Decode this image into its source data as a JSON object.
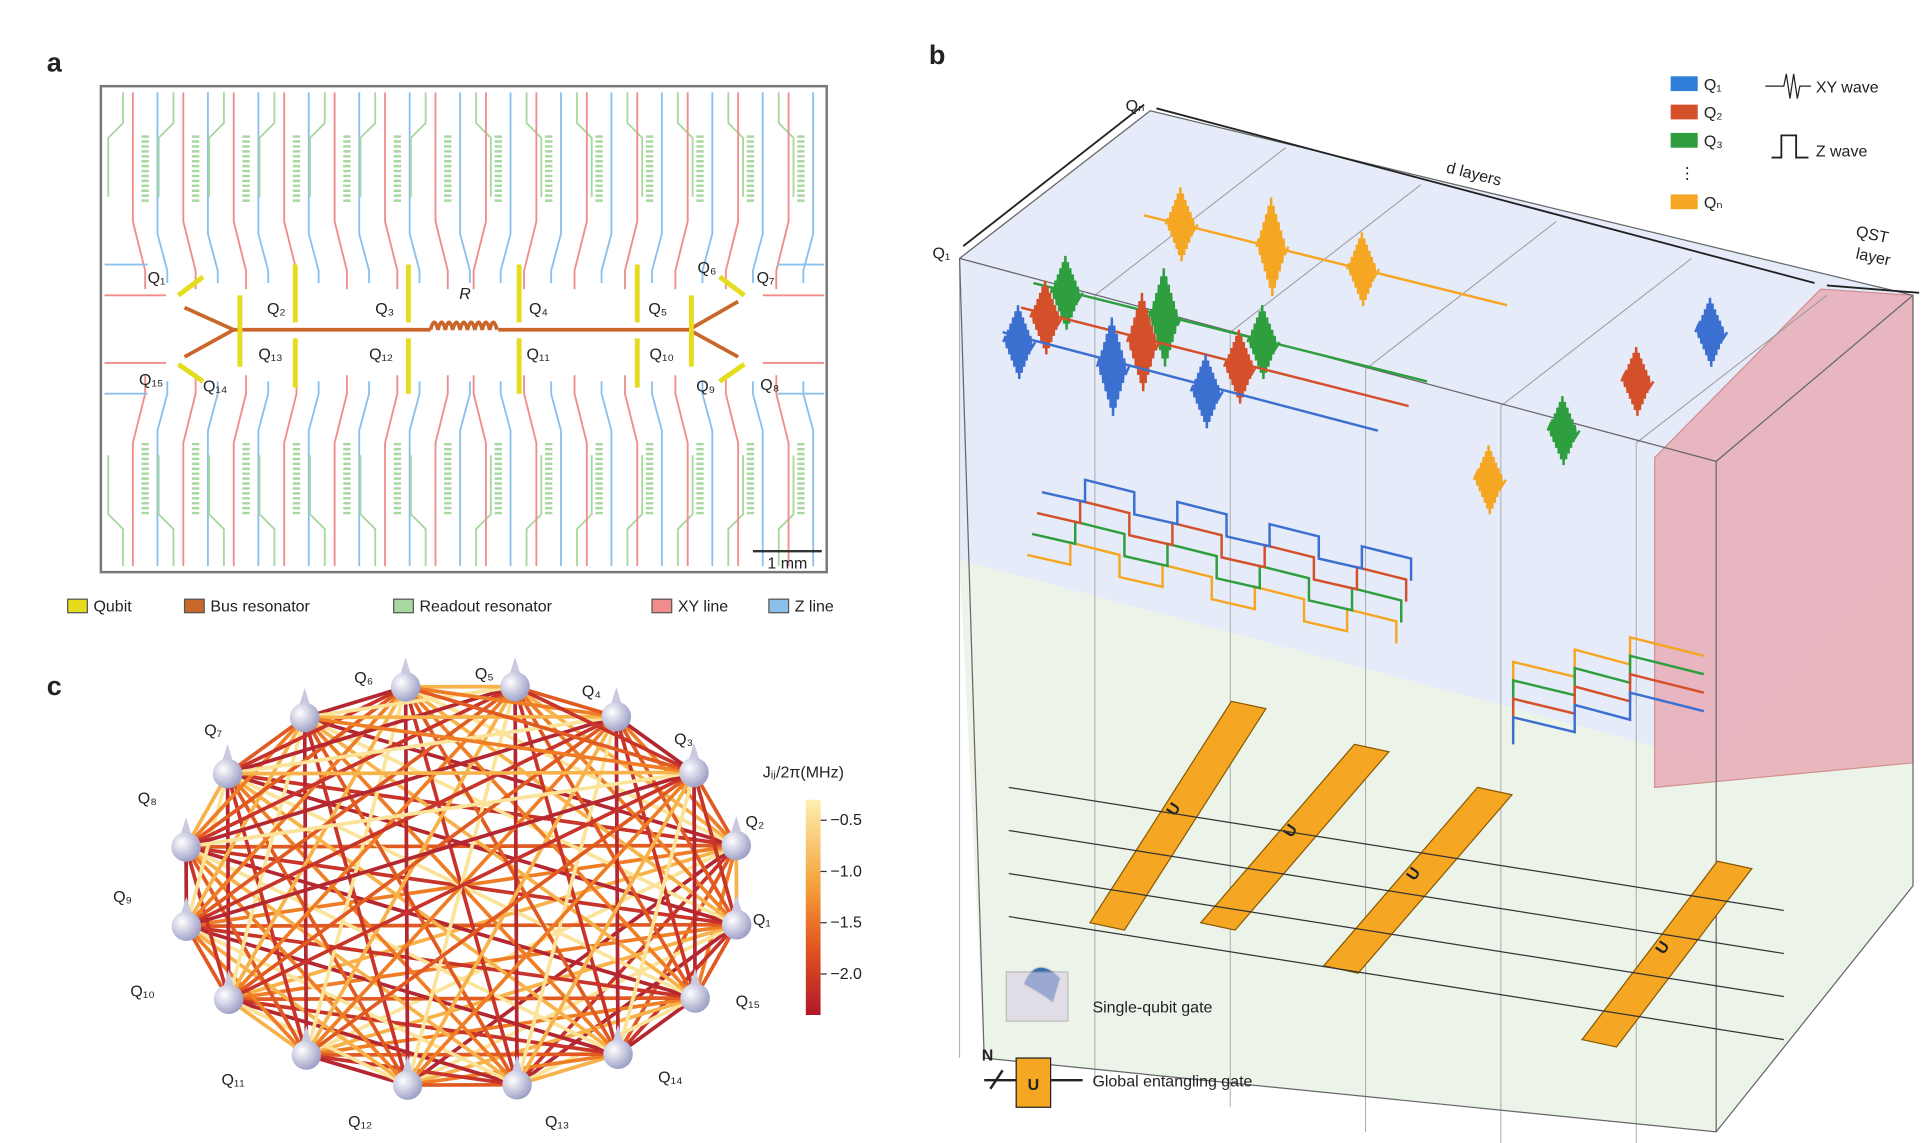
{
  "panel_a": {
    "label": "a",
    "qubits": [
      "Q₁",
      "Q₂",
      "Q₃",
      "Q₄",
      "Q₅",
      "Q₆",
      "Q₇",
      "Q₈",
      "Q₉",
      "Q₁₀",
      "Q₁₁",
      "Q₁₂",
      "Q₁₃",
      "Q₁₄",
      "Q₁₅"
    ],
    "coupler": "R",
    "scale_bar": "1 mm",
    "legend": [
      "Qubit",
      "Bus resonator",
      "Readout resonator",
      "XY line",
      "Z line"
    ]
  },
  "panel_b": {
    "label": "b",
    "first_qubit": "Q₁",
    "last_qubit": "Qₙ",
    "depth": "d layers",
    "qst": [
      "QST",
      "layer"
    ],
    "legend": {
      "qubits": [
        "Q₁",
        "Q₂",
        "Q₃",
        "Qₙ"
      ],
      "ellipsis": "⋮",
      "xy": "XY wave",
      "z": "Z wave"
    },
    "gate": "U",
    "n": "N",
    "single_gate": "Single-qubit gate",
    "entangling_gate": "Global entangling gate"
  },
  "panel_c": {
    "label": "c",
    "qubits": [
      "Q₁",
      "Q₂",
      "Q₃",
      "Q₄",
      "Q₅",
      "Q₆",
      "Q₇",
      "Q₈",
      "Q₉",
      "Q₁₀",
      "Q₁₁",
      "Q₁₂",
      "Q₁₃",
      "Q₁₄",
      "Q₁₅"
    ],
    "colorbar": {
      "title": "Jᵢⱼ/2π(MHz)",
      "lim": [
        -0.3,
        -2.4
      ],
      "ticks": [
        {
          "value": -0.5,
          "label": "−0.5"
        },
        {
          "value": -1.0,
          "label": "−1.0"
        },
        {
          "value": -1.5,
          "label": "−1.5"
        },
        {
          "value": -2.0,
          "label": "−2.0"
        }
      ]
    }
  }
}
